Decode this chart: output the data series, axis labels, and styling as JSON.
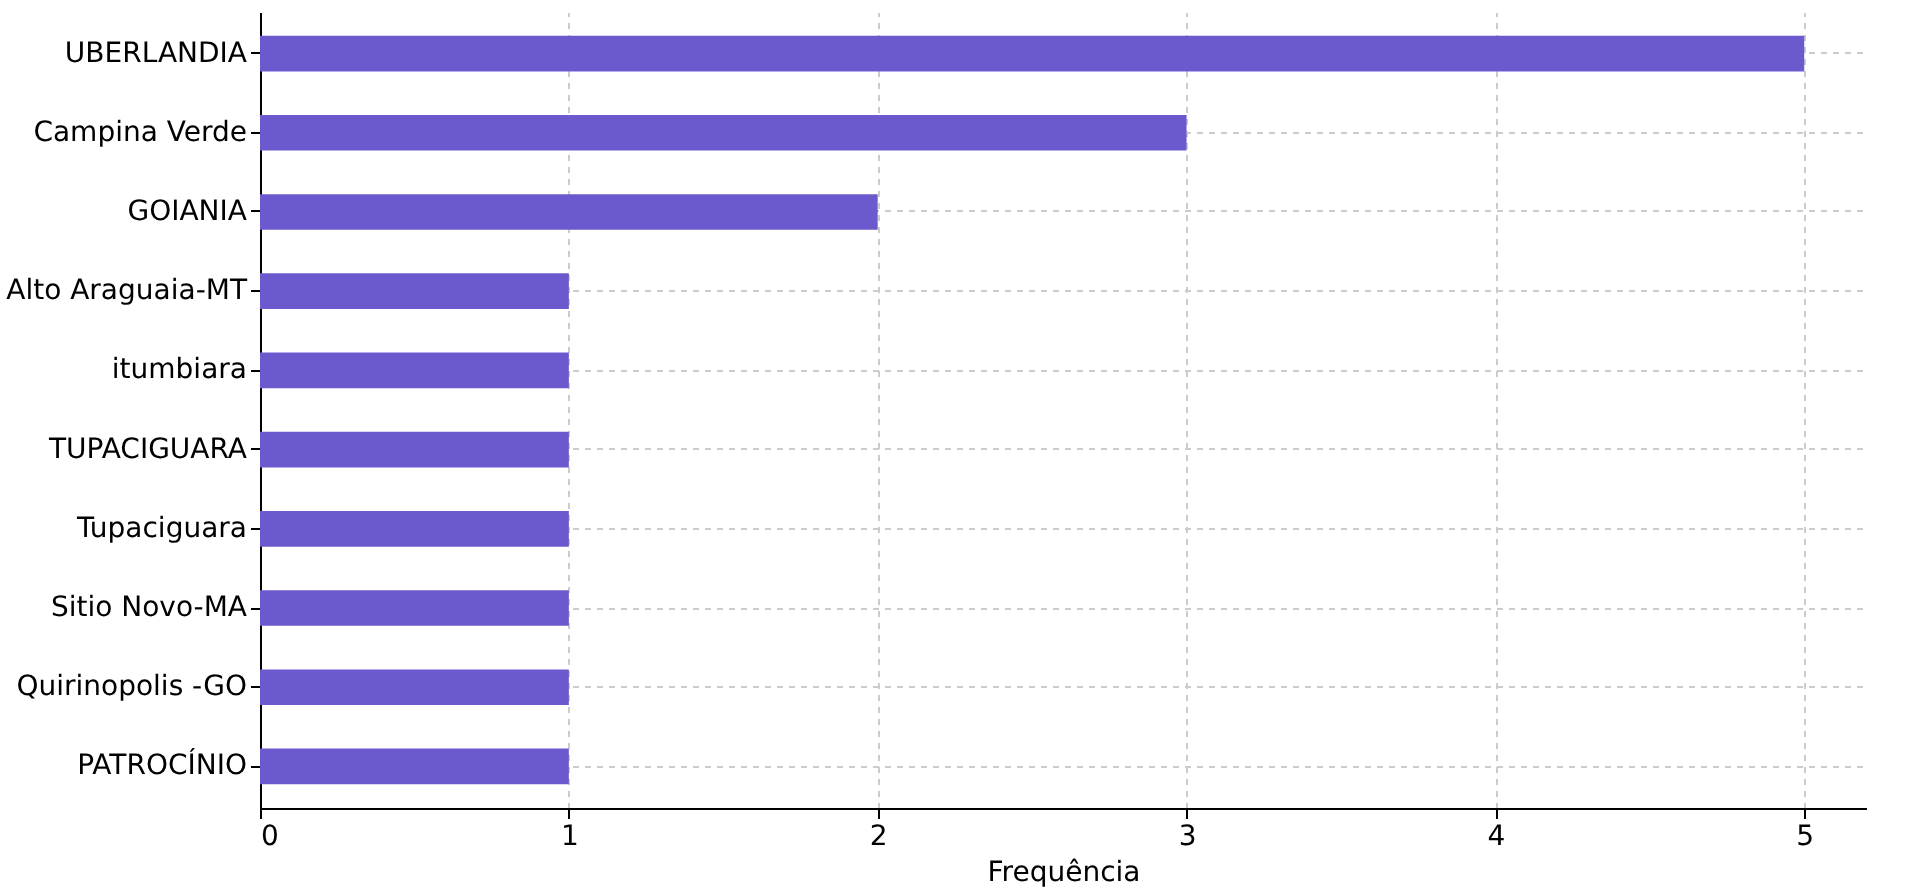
{
  "chart_data": {
    "type": "bar",
    "orientation": "horizontal",
    "xlabel": "Frequência",
    "categories": [
      "UBERLANDIA",
      "Campina Verde",
      "GOIANIA",
      "Alto Araguaia-MT",
      "itumbiara",
      "TUPACIGUARA",
      "Tupaciguara",
      "Sitio Novo-MA",
      "Quirinopolis -GO",
      "PATROCÍNIO"
    ],
    "values": [
      5,
      3,
      2,
      1,
      1,
      1,
      1,
      1,
      1,
      1
    ],
    "color": "#6a5acd",
    "xlim": [
      0,
      5.2
    ],
    "xticks": [
      0,
      1,
      2,
      3,
      4,
      5
    ],
    "grid": true
  }
}
